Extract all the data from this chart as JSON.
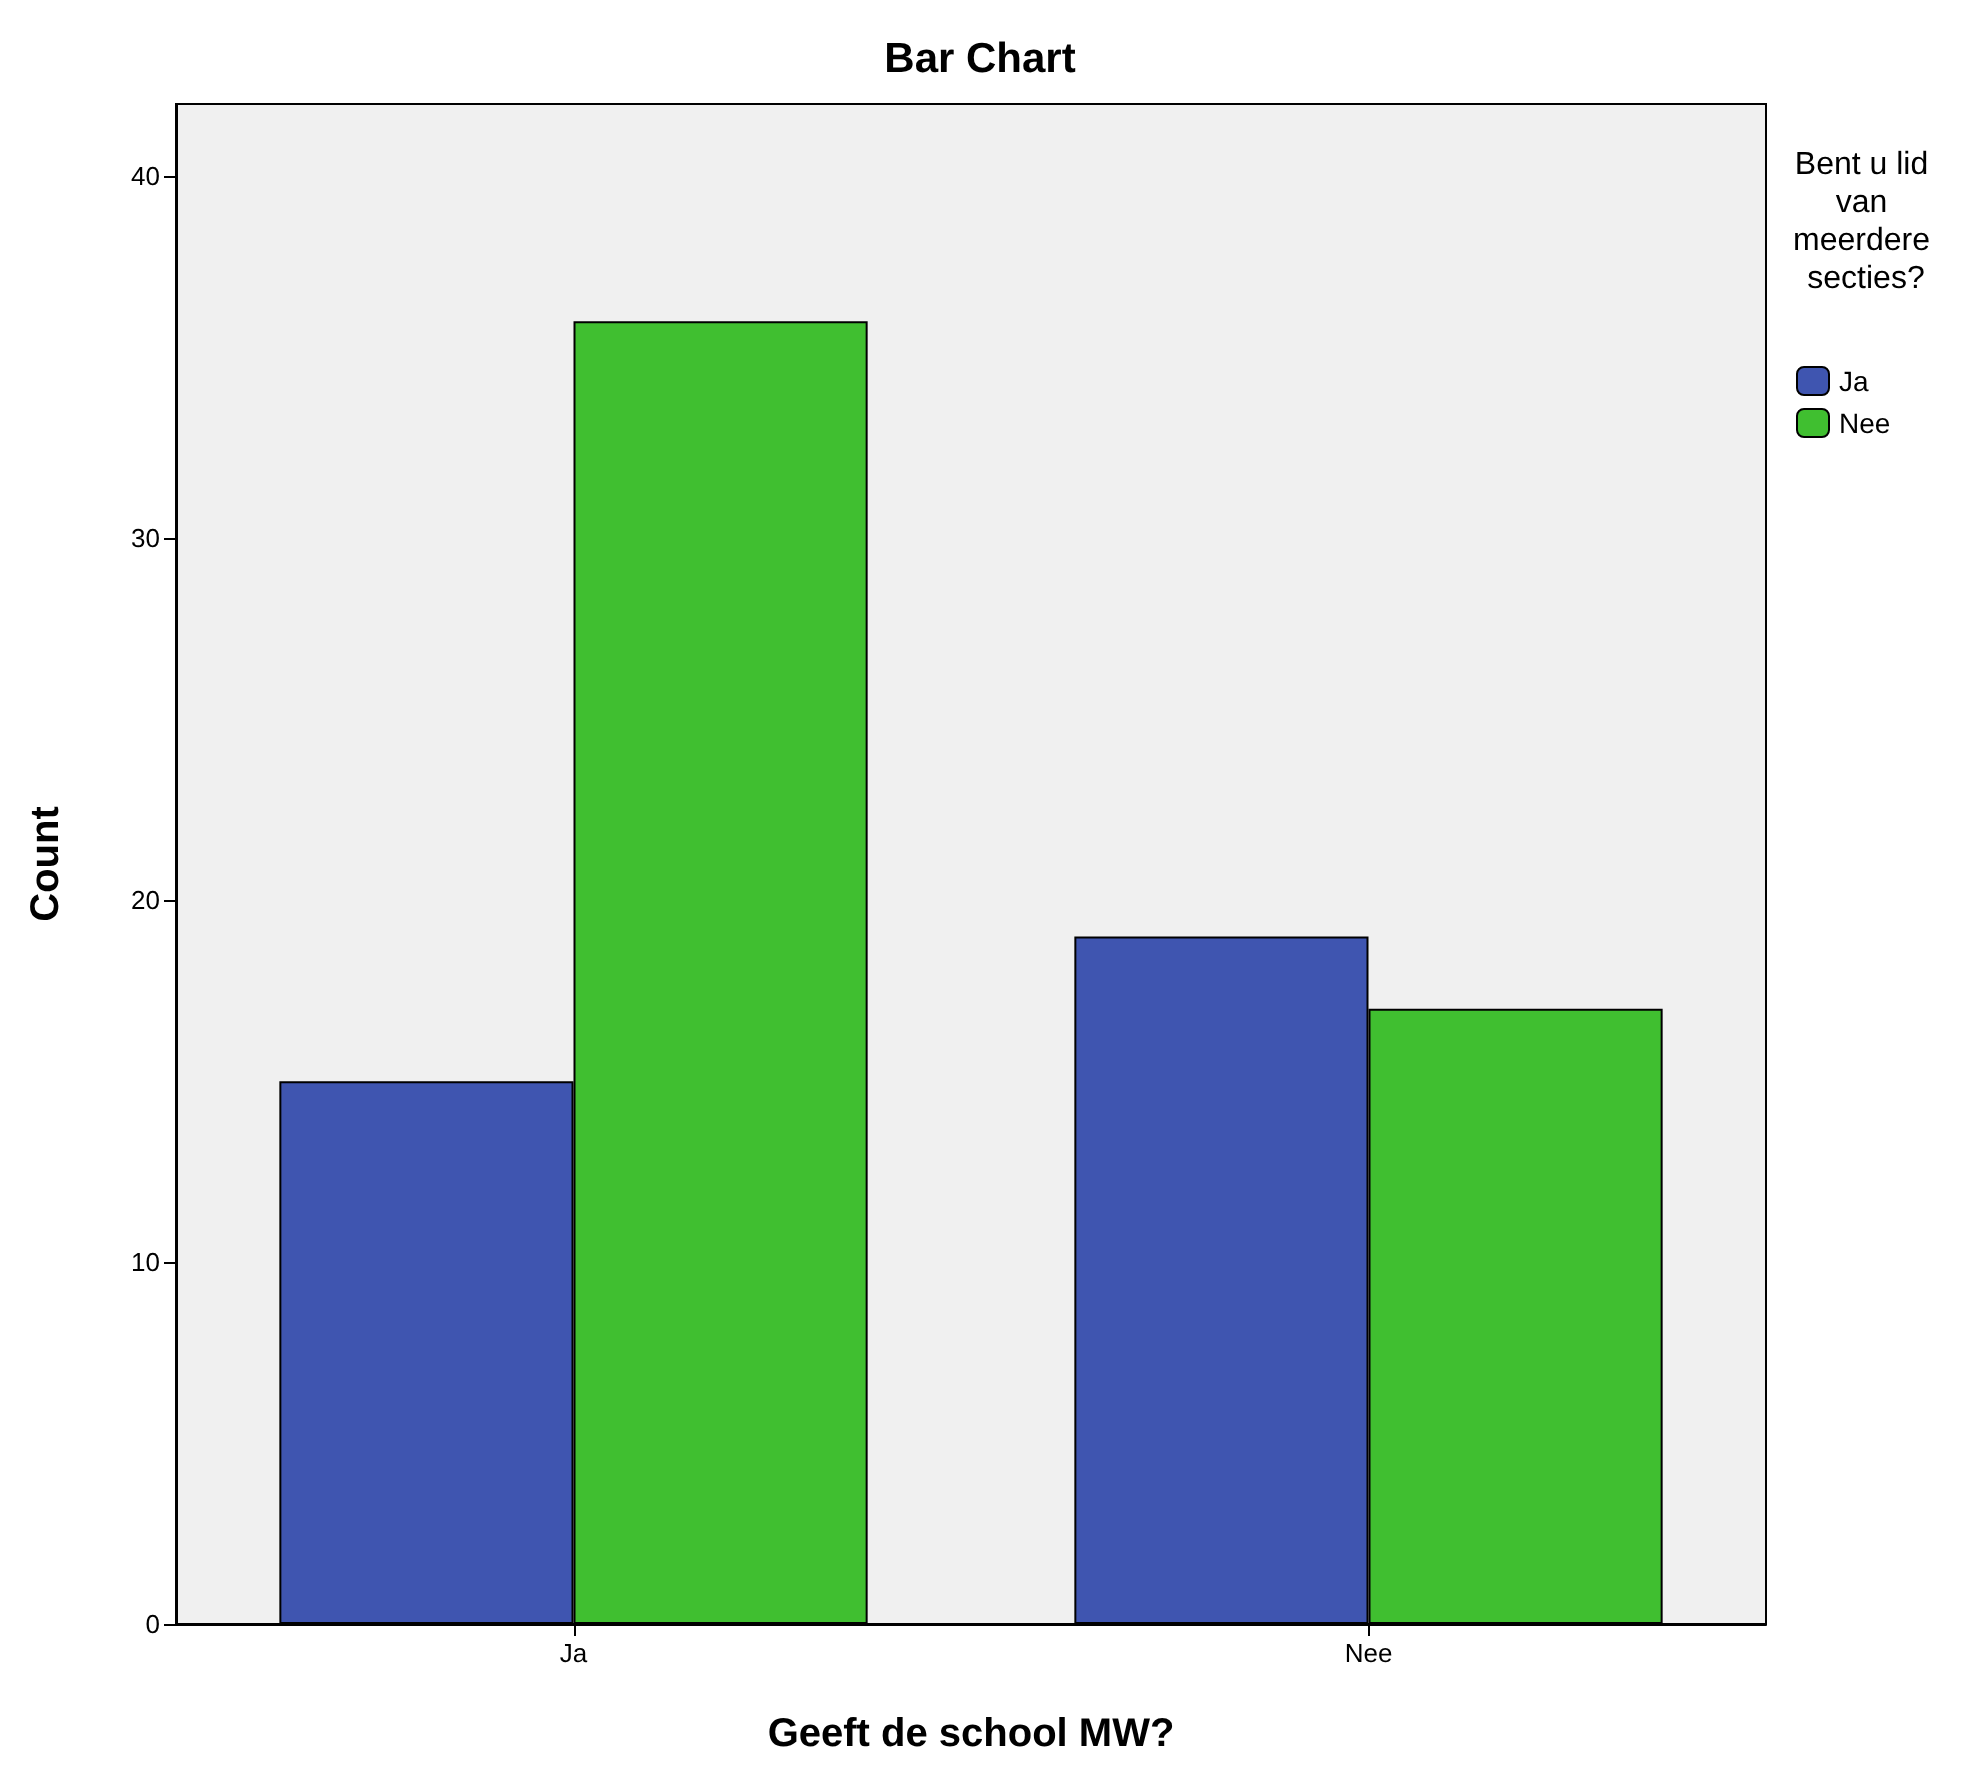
{
  "chart_data": {
    "type": "bar",
    "title": "Bar Chart",
    "xlabel": "Geeft de school MW?",
    "ylabel": "Count",
    "legend_title": "Bent u lid van meerdere secties?",
    "categories": [
      "Ja",
      "Nee"
    ],
    "series": [
      {
        "name": "Ja",
        "color": "#3f55b0",
        "values": [
          15,
          19
        ]
      },
      {
        "name": "Nee",
        "color": "#40bf30",
        "values": [
          36,
          17
        ]
      }
    ],
    "ylim": [
      0,
      42
    ],
    "yticks": [
      0,
      10,
      20,
      30,
      40
    ],
    "grid": false,
    "legend": "right"
  }
}
